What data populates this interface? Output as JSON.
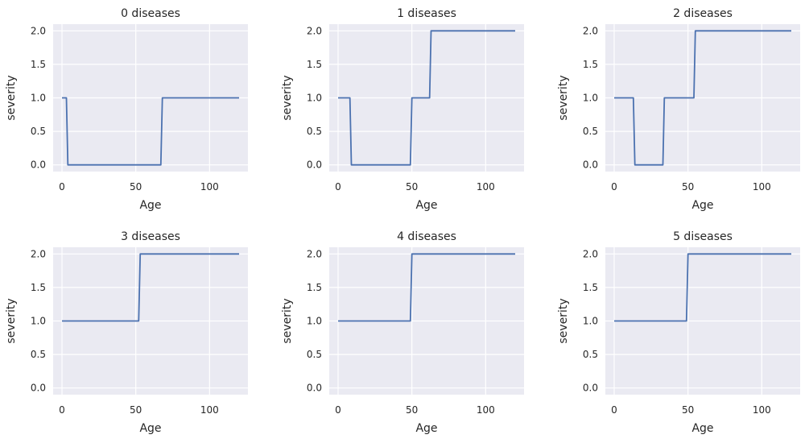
{
  "chart_data": [
    {
      "type": "line",
      "title": "0 diseases",
      "xlabel": "Age",
      "ylabel": "severity",
      "xlim": [
        -6,
        126
      ],
      "ylim": [
        -0.1,
        2.1
      ],
      "xticks": [
        0,
        50,
        100
      ],
      "xtick_labels": [
        "0",
        "50",
        "100"
      ],
      "yticks": [
        0.0,
        0.5,
        1.0,
        1.5,
        2.0
      ],
      "ytick_labels": [
        "0.0",
        "0.5",
        "1.0",
        "1.5",
        "2.0"
      ],
      "color": "#4c72b0",
      "x": [
        0,
        3,
        4,
        67,
        68,
        120
      ],
      "y": [
        1,
        1,
        0,
        0,
        1,
        1
      ]
    },
    {
      "type": "line",
      "title": "1 diseases",
      "xlabel": "Age",
      "ylabel": "severity",
      "xlim": [
        -6,
        126
      ],
      "ylim": [
        -0.1,
        2.1
      ],
      "xticks": [
        0,
        50,
        100
      ],
      "xtick_labels": [
        "0",
        "50",
        "100"
      ],
      "yticks": [
        0.0,
        0.5,
        1.0,
        1.5,
        2.0
      ],
      "ytick_labels": [
        "0.0",
        "0.5",
        "1.0",
        "1.5",
        "2.0"
      ],
      "color": "#4c72b0",
      "x": [
        0,
        8,
        9,
        49,
        50,
        62,
        63,
        120
      ],
      "y": [
        1,
        1,
        0,
        0,
        1,
        1,
        2,
        2
      ]
    },
    {
      "type": "line",
      "title": "2 diseases",
      "xlabel": "Age",
      "ylabel": "severity",
      "xlim": [
        -6,
        126
      ],
      "ylim": [
        -0.1,
        2.1
      ],
      "xticks": [
        0,
        50,
        100
      ],
      "xtick_labels": [
        "0",
        "50",
        "100"
      ],
      "yticks": [
        0.0,
        0.5,
        1.0,
        1.5,
        2.0
      ],
      "ytick_labels": [
        "0.0",
        "0.5",
        "1.0",
        "1.5",
        "2.0"
      ],
      "color": "#4c72b0",
      "x": [
        0,
        13,
        14,
        33,
        34,
        54,
        55,
        120
      ],
      "y": [
        1,
        1,
        0,
        0,
        1,
        1,
        2,
        2
      ]
    },
    {
      "type": "line",
      "title": "3 diseases",
      "xlabel": "Age",
      "ylabel": "severity",
      "xlim": [
        -6,
        126
      ],
      "ylim": [
        -0.1,
        2.1
      ],
      "xticks": [
        0,
        50,
        100
      ],
      "xtick_labels": [
        "0",
        "50",
        "100"
      ],
      "yticks": [
        0.0,
        0.5,
        1.0,
        1.5,
        2.0
      ],
      "ytick_labels": [
        "0.0",
        "0.5",
        "1.0",
        "1.5",
        "2.0"
      ],
      "color": "#4c72b0",
      "x": [
        0,
        52,
        53,
        120
      ],
      "y": [
        1,
        1,
        2,
        2
      ]
    },
    {
      "type": "line",
      "title": "4 diseases",
      "xlabel": "Age",
      "ylabel": "severity",
      "xlim": [
        -6,
        126
      ],
      "ylim": [
        -0.1,
        2.1
      ],
      "xticks": [
        0,
        50,
        100
      ],
      "xtick_labels": [
        "0",
        "50",
        "100"
      ],
      "yticks": [
        0.0,
        0.5,
        1.0,
        1.5,
        2.0
      ],
      "ytick_labels": [
        "0.0",
        "0.5",
        "1.0",
        "1.5",
        "2.0"
      ],
      "color": "#4c72b0",
      "x": [
        0,
        49,
        50,
        120
      ],
      "y": [
        1,
        1,
        2,
        2
      ]
    },
    {
      "type": "line",
      "title": "5 diseases",
      "xlabel": "Age",
      "ylabel": "severity",
      "xlim": [
        -6,
        126
      ],
      "ylim": [
        -0.1,
        2.1
      ],
      "xticks": [
        0,
        50,
        100
      ],
      "xtick_labels": [
        "0",
        "50",
        "100"
      ],
      "yticks": [
        0.0,
        0.5,
        1.0,
        1.5,
        2.0
      ],
      "ytick_labels": [
        "0.0",
        "0.5",
        "1.0",
        "1.5",
        "2.0"
      ],
      "color": "#4c72b0",
      "x": [
        0,
        49,
        50,
        120
      ],
      "y": [
        1,
        1,
        2,
        2
      ]
    }
  ]
}
